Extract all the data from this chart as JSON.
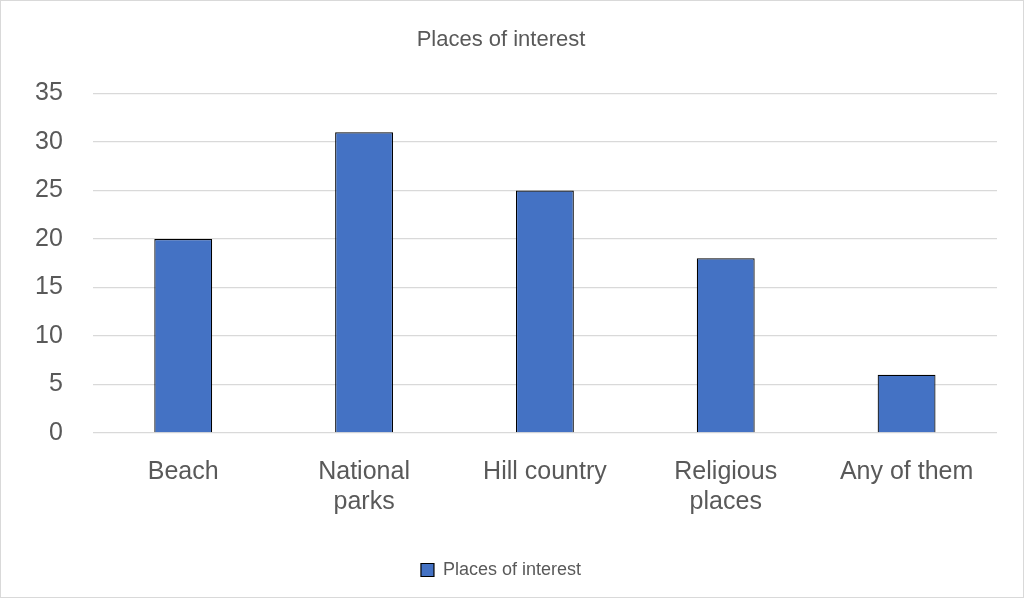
{
  "chart_data": {
    "type": "bar",
    "title": "Places of interest",
    "categories": [
      "Beach",
      "National parks",
      "Hill country",
      "Religious places",
      "Any of them"
    ],
    "series": [
      {
        "name": "Places of interest",
        "color": "#4472c4",
        "values": [
          20,
          31,
          25,
          18,
          6
        ]
      }
    ],
    "ylim": [
      0,
      35
    ],
    "yticks": [
      0,
      5,
      10,
      15,
      20,
      25,
      30,
      35
    ],
    "grid": "y",
    "legend": "bottom"
  }
}
